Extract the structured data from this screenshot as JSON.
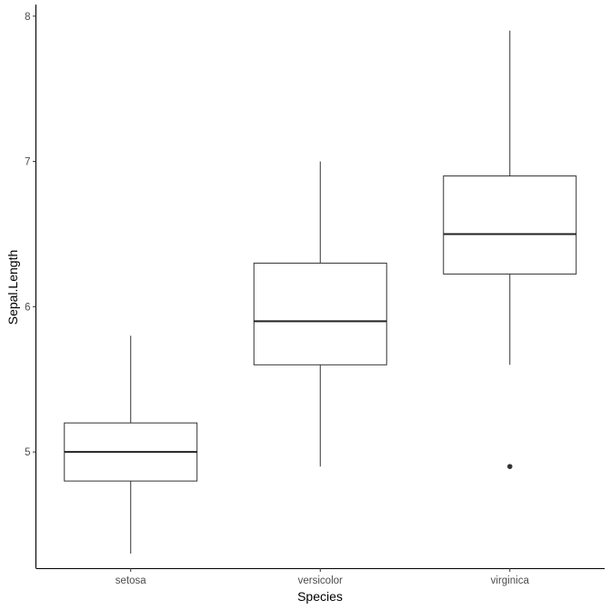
{
  "chart_data": {
    "type": "boxplot",
    "title": "",
    "xlabel": "Species",
    "ylabel": "Sepal.Length",
    "categories": [
      "setosa",
      "versicolor",
      "virginica"
    ],
    "ylim": [
      4.2,
      8.08
    ],
    "yticks": [
      5,
      6,
      7,
      8
    ],
    "grid": false,
    "boxes": [
      {
        "category": "setosa",
        "whisker_low": 4.3,
        "q1": 4.8,
        "median": 5.0,
        "q3": 5.2,
        "whisker_high": 5.8,
        "outliers": []
      },
      {
        "category": "versicolor",
        "whisker_low": 4.9,
        "q1": 5.6,
        "median": 5.9,
        "q3": 6.3,
        "whisker_high": 7.0,
        "outliers": []
      },
      {
        "category": "virginica",
        "whisker_low": 5.6,
        "q1": 6.225,
        "median": 6.5,
        "q3": 6.9,
        "whisker_high": 7.9,
        "outliers": [
          4.9
        ]
      }
    ],
    "colors": {
      "box_stroke": "#333333",
      "box_fill": "#ffffff",
      "axis": "#000000"
    }
  }
}
